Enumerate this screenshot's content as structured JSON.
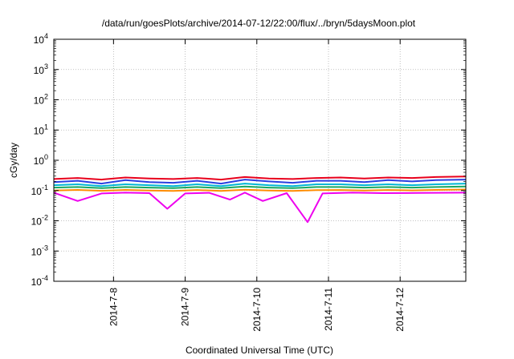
{
  "chart_data": {
    "type": "line",
    "title": "/data/run/goesPlots/archive/2014-07-12/22:00/flux/../bryn/5daysMoon.plot",
    "xlabel": "Coordinated Universal Time (UTC)",
    "ylabel": "cGy/day",
    "yscale": "log",
    "ylim": [
      0.0001,
      10000
    ],
    "xlim": [
      "2014-07-07 04:00",
      "2014-07-12 22:00"
    ],
    "grid": true,
    "legend": "none",
    "x_ticks": [
      {
        "value": "2014-07-08 00:00",
        "label": "2014-7-8"
      },
      {
        "value": "2014-07-09 00:00",
        "label": "2014-7-9"
      },
      {
        "value": "2014-07-10 00:00",
        "label": "2014-7-10"
      },
      {
        "value": "2014-07-11 00:00",
        "label": "2014-7-11"
      },
      {
        "value": "2014-07-12 00:00",
        "label": "2014-7-12"
      }
    ],
    "y_ticks": [
      {
        "value": 0.0001,
        "base": "10",
        "exp": "-4"
      },
      {
        "value": 0.001,
        "base": "10",
        "exp": "-3"
      },
      {
        "value": 0.01,
        "base": "10",
        "exp": "-2"
      },
      {
        "value": 0.1,
        "base": "10",
        "exp": "-1"
      },
      {
        "value": 1,
        "base": "10",
        "exp": "0"
      },
      {
        "value": 10,
        "base": "10",
        "exp": "1"
      },
      {
        "value": 100,
        "base": "10",
        "exp": "2"
      },
      {
        "value": 1000,
        "base": "10",
        "exp": "3"
      },
      {
        "value": 10000,
        "base": "10",
        "exp": "4"
      }
    ],
    "series": [
      {
        "color": "#e8001c",
        "values": [
          [
            "2014-07-07 04:00",
            0.24
          ],
          [
            "2014-07-07 12:00",
            0.26
          ],
          [
            "2014-07-07 20:00",
            0.23
          ],
          [
            "2014-07-08 04:00",
            0.27
          ],
          [
            "2014-07-08 12:00",
            0.25
          ],
          [
            "2014-07-08 20:00",
            0.24
          ],
          [
            "2014-07-09 04:00",
            0.26
          ],
          [
            "2014-07-09 12:00",
            0.23
          ],
          [
            "2014-07-09 20:00",
            0.28
          ],
          [
            "2014-07-10 04:00",
            0.25
          ],
          [
            "2014-07-10 12:00",
            0.24
          ],
          [
            "2014-07-10 20:00",
            0.26
          ],
          [
            "2014-07-11 04:00",
            0.27
          ],
          [
            "2014-07-11 12:00",
            0.25
          ],
          [
            "2014-07-11 20:00",
            0.27
          ],
          [
            "2014-07-12 04:00",
            0.26
          ],
          [
            "2014-07-12 12:00",
            0.28
          ],
          [
            "2014-07-12 22:00",
            0.29
          ]
        ]
      },
      {
        "color": "#2a3fe0",
        "values": [
          [
            "2014-07-07 04:00",
            0.19
          ],
          [
            "2014-07-07 12:00",
            0.21
          ],
          [
            "2014-07-07 20:00",
            0.17
          ],
          [
            "2014-07-08 04:00",
            0.22
          ],
          [
            "2014-07-08 12:00",
            0.19
          ],
          [
            "2014-07-08 20:00",
            0.18
          ],
          [
            "2014-07-09 04:00",
            0.21
          ],
          [
            "2014-07-09 12:00",
            0.17
          ],
          [
            "2014-07-09 20:00",
            0.23
          ],
          [
            "2014-07-10 04:00",
            0.2
          ],
          [
            "2014-07-10 12:00",
            0.18
          ],
          [
            "2014-07-10 20:00",
            0.21
          ],
          [
            "2014-07-11 04:00",
            0.21
          ],
          [
            "2014-07-11 12:00",
            0.19
          ],
          [
            "2014-07-11 20:00",
            0.22
          ],
          [
            "2014-07-12 04:00",
            0.2
          ],
          [
            "2014-07-12 12:00",
            0.22
          ],
          [
            "2014-07-12 22:00",
            0.23
          ]
        ]
      },
      {
        "color": "#00b7d4",
        "values": [
          [
            "2014-07-07 04:00",
            0.15
          ],
          [
            "2014-07-07 12:00",
            0.16
          ],
          [
            "2014-07-07 20:00",
            0.14
          ],
          [
            "2014-07-08 04:00",
            0.16
          ],
          [
            "2014-07-08 12:00",
            0.15
          ],
          [
            "2014-07-08 20:00",
            0.14
          ],
          [
            "2014-07-09 04:00",
            0.16
          ],
          [
            "2014-07-09 12:00",
            0.14
          ],
          [
            "2014-07-09 20:00",
            0.17
          ],
          [
            "2014-07-10 04:00",
            0.15
          ],
          [
            "2014-07-10 12:00",
            0.14
          ],
          [
            "2014-07-10 20:00",
            0.16
          ],
          [
            "2014-07-11 04:00",
            0.16
          ],
          [
            "2014-07-11 12:00",
            0.15
          ],
          [
            "2014-07-11 20:00",
            0.16
          ],
          [
            "2014-07-12 04:00",
            0.15
          ],
          [
            "2014-07-12 12:00",
            0.16
          ],
          [
            "2014-07-12 22:00",
            0.17
          ]
        ]
      },
      {
        "color": "#1aa860",
        "values": [
          [
            "2014-07-07 04:00",
            0.125
          ],
          [
            "2014-07-07 12:00",
            0.13
          ],
          [
            "2014-07-07 20:00",
            0.12
          ],
          [
            "2014-07-08 04:00",
            0.13
          ],
          [
            "2014-07-08 12:00",
            0.125
          ],
          [
            "2014-07-08 20:00",
            0.12
          ],
          [
            "2014-07-09 04:00",
            0.13
          ],
          [
            "2014-07-09 12:00",
            0.12
          ],
          [
            "2014-07-09 20:00",
            0.135
          ],
          [
            "2014-07-10 04:00",
            0.125
          ],
          [
            "2014-07-10 12:00",
            0.12
          ],
          [
            "2014-07-10 20:00",
            0.13
          ],
          [
            "2014-07-11 04:00",
            0.13
          ],
          [
            "2014-07-11 12:00",
            0.125
          ],
          [
            "2014-07-11 20:00",
            0.13
          ],
          [
            "2014-07-12 04:00",
            0.125
          ],
          [
            "2014-07-12 12:00",
            0.13
          ],
          [
            "2014-07-12 22:00",
            0.135
          ]
        ]
      },
      {
        "color": "#ff8c00",
        "values": [
          [
            "2014-07-07 04:00",
            0.1
          ],
          [
            "2014-07-07 12:00",
            0.105
          ],
          [
            "2014-07-07 20:00",
            0.098
          ],
          [
            "2014-07-08 04:00",
            0.105
          ],
          [
            "2014-07-08 12:00",
            0.1
          ],
          [
            "2014-07-08 20:00",
            0.097
          ],
          [
            "2014-07-09 04:00",
            0.104
          ],
          [
            "2014-07-09 12:00",
            0.097
          ],
          [
            "2014-07-09 20:00",
            0.106
          ],
          [
            "2014-07-10 04:00",
            0.1
          ],
          [
            "2014-07-10 12:00",
            0.097
          ],
          [
            "2014-07-10 20:00",
            0.103
          ],
          [
            "2014-07-11 04:00",
            0.104
          ],
          [
            "2014-07-11 12:00",
            0.1
          ],
          [
            "2014-07-11 20:00",
            0.104
          ],
          [
            "2014-07-12 04:00",
            0.101
          ],
          [
            "2014-07-12 12:00",
            0.105
          ],
          [
            "2014-07-12 22:00",
            0.108
          ]
        ]
      },
      {
        "color": "#ee00ee",
        "values": [
          [
            "2014-07-07 04:00",
            0.085
          ],
          [
            "2014-07-07 12:00",
            0.045
          ],
          [
            "2014-07-07 20:00",
            0.08
          ],
          [
            "2014-07-08 04:00",
            0.085
          ],
          [
            "2014-07-08 12:00",
            0.082
          ],
          [
            "2014-07-08 18:00",
            0.025
          ],
          [
            "2014-07-09 00:00",
            0.08
          ],
          [
            "2014-07-09 08:00",
            0.084
          ],
          [
            "2014-07-09 15:00",
            0.05
          ],
          [
            "2014-07-09 20:00",
            0.085
          ],
          [
            "2014-07-10 02:00",
            0.045
          ],
          [
            "2014-07-10 10:00",
            0.082
          ],
          [
            "2014-07-10 17:00",
            0.009
          ],
          [
            "2014-07-10 22:00",
            0.08
          ],
          [
            "2014-07-11 08:00",
            0.085
          ],
          [
            "2014-07-11 18:00",
            0.082
          ],
          [
            "2014-07-12 06:00",
            0.083
          ],
          [
            "2014-07-12 22:00",
            0.085
          ]
        ]
      }
    ]
  }
}
